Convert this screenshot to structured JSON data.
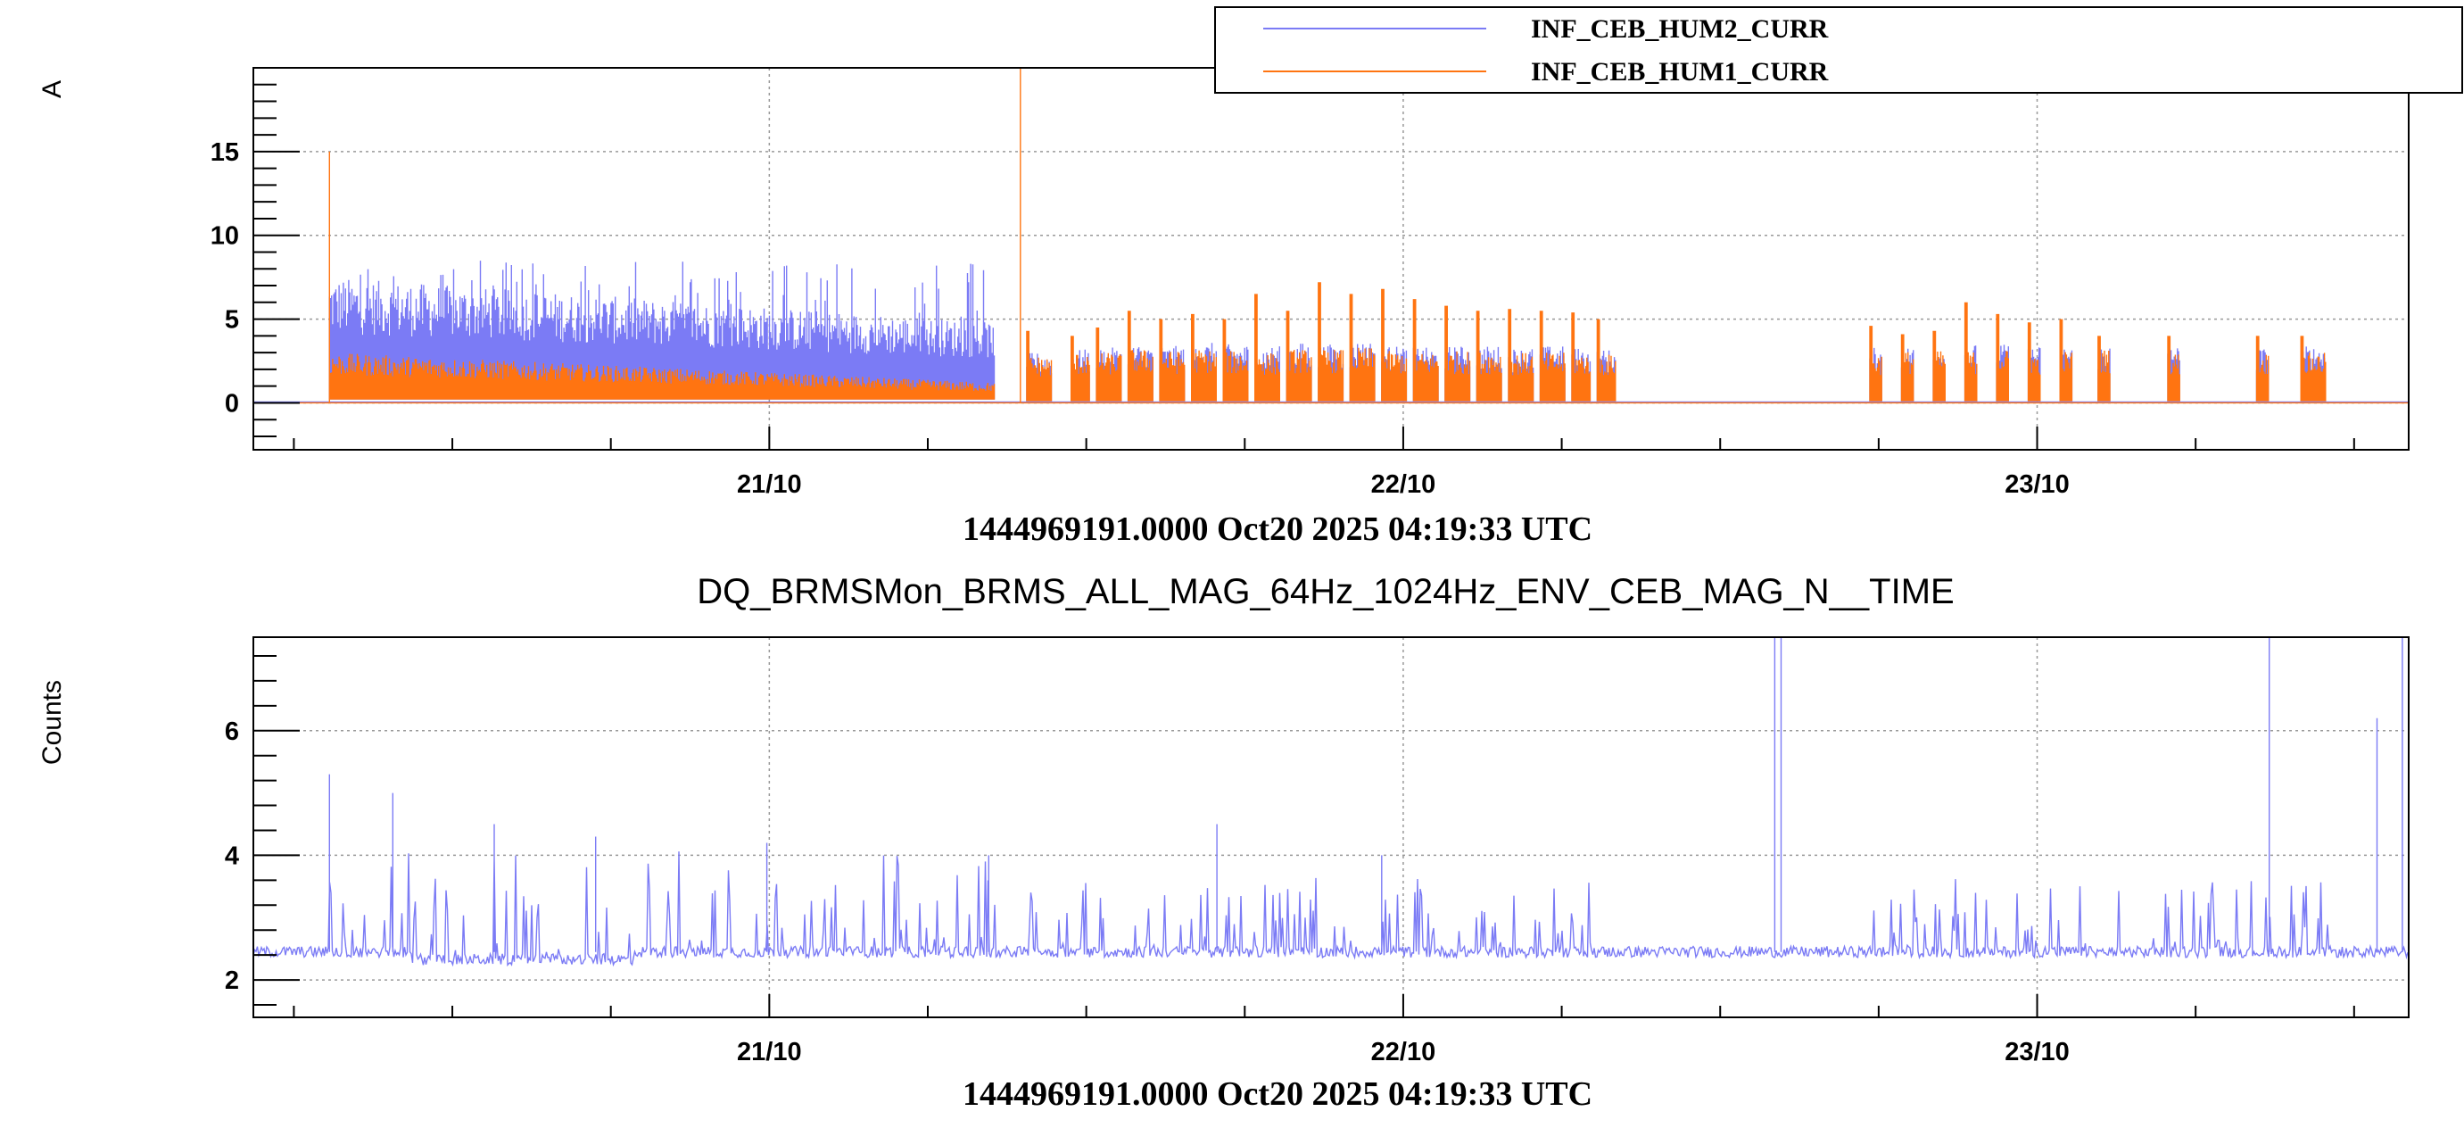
{
  "chart_data": [
    {
      "type": "line",
      "title": "",
      "ylabel": "A",
      "xlabel": "1444969191.0000 Oct20 2025 04:19:33 UTC",
      "x_range_days": [
        0,
        3.4
      ],
      "xticks": [
        {
          "label": "21/10",
          "x": 0.8139
        },
        {
          "label": "22/10",
          "x": 1.8139
        },
        {
          "label": "23/10",
          "x": 2.8139
        }
      ],
      "ylim": [
        -2.8,
        20
      ],
      "yticks": [
        0,
        5,
        10,
        15
      ],
      "grid": true,
      "legend_position": "top-right",
      "series": [
        {
          "name": "INF_CEB_HUM2_CURR",
          "color": "#7b7bf5",
          "segments": [
            {
              "start": 0.12,
              "end": 1.17,
              "base": 0.2,
              "level_start": 7.5,
              "level_end": 4.8,
              "spike_max": 8.5
            },
            {
              "start": 1.22,
              "end": 1.26,
              "base": 0.1,
              "level": 3.0
            },
            {
              "start": 1.29,
              "end": 1.32,
              "base": 0.1,
              "level": 3.2
            },
            {
              "start": 1.33,
              "end": 1.37,
              "base": 0.1,
              "level": 3.3
            },
            {
              "start": 1.38,
              "end": 1.42,
              "base": 0.1,
              "level": 3.5
            },
            {
              "start": 1.43,
              "end": 1.47,
              "base": 0.1,
              "level": 3.4
            },
            {
              "start": 1.48,
              "end": 1.52,
              "base": 0.1,
              "level": 3.6
            },
            {
              "start": 1.53,
              "end": 1.57,
              "base": 0.1,
              "level": 3.5
            },
            {
              "start": 1.58,
              "end": 1.62,
              "base": 0.1,
              "level": 3.4
            },
            {
              "start": 1.63,
              "end": 1.67,
              "base": 0.1,
              "level": 3.6
            },
            {
              "start": 1.68,
              "end": 1.72,
              "base": 0.1,
              "level": 3.5
            },
            {
              "start": 1.73,
              "end": 1.77,
              "base": 0.1,
              "level": 3.7
            },
            {
              "start": 1.78,
              "end": 1.82,
              "base": 0.1,
              "level": 3.4
            },
            {
              "start": 1.83,
              "end": 1.87,
              "base": 0.1,
              "level": 3.3
            },
            {
              "start": 1.88,
              "end": 1.92,
              "base": 0.1,
              "level": 3.4
            },
            {
              "start": 1.93,
              "end": 1.97,
              "base": 0.1,
              "level": 3.4
            },
            {
              "start": 1.98,
              "end": 2.02,
              "base": 0.1,
              "level": 3.3
            },
            {
              "start": 2.03,
              "end": 2.07,
              "base": 0.1,
              "level": 3.4
            },
            {
              "start": 2.08,
              "end": 2.11,
              "base": 0.1,
              "level": 3.3
            },
            {
              "start": 2.12,
              "end": 2.15,
              "base": 0.1,
              "level": 3.2
            },
            {
              "start": 2.55,
              "end": 2.57,
              "base": 0.1,
              "level": 3.3
            },
            {
              "start": 2.6,
              "end": 2.62,
              "base": 0.1,
              "level": 3.4
            },
            {
              "start": 2.65,
              "end": 2.67,
              "base": 0.1,
              "level": 3.4
            },
            {
              "start": 2.7,
              "end": 2.72,
              "base": 0.1,
              "level": 3.5
            },
            {
              "start": 2.75,
              "end": 2.77,
              "base": 0.1,
              "level": 3.5
            },
            {
              "start": 2.8,
              "end": 2.82,
              "base": 0.1,
              "level": 3.4
            },
            {
              "start": 2.85,
              "end": 2.87,
              "base": 0.1,
              "level": 3.4
            },
            {
              "start": 2.91,
              "end": 2.93,
              "base": 0.1,
              "level": 3.5
            },
            {
              "start": 3.02,
              "end": 3.04,
              "base": 0.1,
              "level": 3.4
            },
            {
              "start": 3.16,
              "end": 3.18,
              "base": 0.1,
              "level": 3.3
            },
            {
              "start": 3.23,
              "end": 3.27,
              "base": 0.1,
              "level": 3.4
            }
          ]
        },
        {
          "name": "INF_CEB_HUM1_CURR",
          "color": "#ff7411",
          "baseline": 0.0,
          "spikes": [
            {
              "x": 0.12,
              "y": 15.0
            },
            {
              "x": 1.21,
              "y": 20.0
            }
          ],
          "segments": [
            {
              "start": 0.12,
              "end": 1.17,
              "base": 0.2,
              "level_start": 3.0,
              "level_end": 1.2
            },
            {
              "start": 1.22,
              "end": 1.26,
              "base": 0.1,
              "level": 2.8,
              "peak": 4.3
            },
            {
              "start": 1.29,
              "end": 1.32,
              "base": 0.1,
              "level": 3.0,
              "peak": 4.0
            },
            {
              "start": 1.33,
              "end": 1.37,
              "base": 0.1,
              "level": 3.0,
              "peak": 4.5
            },
            {
              "start": 1.38,
              "end": 1.42,
              "base": 0.1,
              "level": 3.2,
              "peak": 5.5
            },
            {
              "start": 1.43,
              "end": 1.47,
              "base": 0.1,
              "level": 3.1,
              "peak": 5.0
            },
            {
              "start": 1.48,
              "end": 1.52,
              "base": 0.1,
              "level": 3.2,
              "peak": 5.3
            },
            {
              "start": 1.53,
              "end": 1.57,
              "base": 0.1,
              "level": 3.1,
              "peak": 5.0
            },
            {
              "start": 1.58,
              "end": 1.62,
              "base": 0.1,
              "level": 3.0,
              "peak": 6.5
            },
            {
              "start": 1.63,
              "end": 1.67,
              "base": 0.1,
              "level": 3.2,
              "peak": 5.5
            },
            {
              "start": 1.68,
              "end": 1.72,
              "base": 0.1,
              "level": 3.2,
              "peak": 7.2
            },
            {
              "start": 1.73,
              "end": 1.77,
              "base": 0.1,
              "level": 3.3,
              "peak": 6.5
            },
            {
              "start": 1.78,
              "end": 1.82,
              "base": 0.1,
              "level": 3.1,
              "peak": 6.8
            },
            {
              "start": 1.83,
              "end": 1.87,
              "base": 0.1,
              "level": 3.0,
              "peak": 6.2
            },
            {
              "start": 1.88,
              "end": 1.92,
              "base": 0.1,
              "level": 3.1,
              "peak": 5.8
            },
            {
              "start": 1.93,
              "end": 1.97,
              "base": 0.1,
              "level": 3.1,
              "peak": 5.5
            },
            {
              "start": 1.98,
              "end": 2.02,
              "base": 0.1,
              "level": 3.0,
              "peak": 5.6
            },
            {
              "start": 2.03,
              "end": 2.07,
              "base": 0.1,
              "level": 3.0,
              "peak": 5.5
            },
            {
              "start": 2.08,
              "end": 2.11,
              "base": 0.1,
              "level": 3.0,
              "peak": 5.4
            },
            {
              "start": 2.12,
              "end": 2.15,
              "base": 0.1,
              "level": 2.9,
              "peak": 5.0
            },
            {
              "start": 2.55,
              "end": 2.57,
              "base": 0.1,
              "level": 3.0,
              "peak": 4.6
            },
            {
              "start": 2.6,
              "end": 2.62,
              "base": 0.1,
              "level": 3.1,
              "peak": 4.1
            },
            {
              "start": 2.65,
              "end": 2.67,
              "base": 0.1,
              "level": 3.1,
              "peak": 4.3
            },
            {
              "start": 2.7,
              "end": 2.72,
              "base": 0.1,
              "level": 3.1,
              "peak": 6.0
            },
            {
              "start": 2.75,
              "end": 2.77,
              "base": 0.1,
              "level": 3.2,
              "peak": 5.3
            },
            {
              "start": 2.8,
              "end": 2.82,
              "base": 0.1,
              "level": 3.0,
              "peak": 4.8
            },
            {
              "start": 2.85,
              "end": 2.87,
              "base": 0.1,
              "level": 3.1,
              "peak": 5.0
            },
            {
              "start": 2.91,
              "end": 2.93,
              "base": 0.1,
              "level": 3.2,
              "peak": 4.0
            },
            {
              "start": 3.02,
              "end": 3.04,
              "base": 0.1,
              "level": 3.0,
              "peak": 4.0
            },
            {
              "start": 3.16,
              "end": 3.18,
              "base": 0.1,
              "level": 3.0,
              "peak": 4.0
            },
            {
              "start": 3.23,
              "end": 3.27,
              "base": 0.1,
              "level": 3.0,
              "peak": 4.0
            }
          ]
        }
      ]
    },
    {
      "type": "line",
      "title": "DQ_BRMSMon_BRMS_ALL_MAG_64Hz_1024Hz_ENV_CEB_MAG_N__TIME",
      "ylabel": "Counts",
      "xlabel": "1444969191.0000 Oct20 2025 04:19:33 UTC",
      "x_range_days": [
        0,
        3.4
      ],
      "xticks": [
        {
          "label": "21/10",
          "x": 0.8139
        },
        {
          "label": "22/10",
          "x": 1.8139
        },
        {
          "label": "23/10",
          "x": 2.8139
        }
      ],
      "ylim": [
        1.4,
        7.5
      ],
      "yticks": [
        2,
        4,
        6
      ],
      "grid": true,
      "series": [
        {
          "name": "",
          "color": "#7b7bf5",
          "baseline": 2.45,
          "spikes": [
            {
              "x": 0.0,
              "y": 7.5
            },
            {
              "x": 0.12,
              "y": 5.3
            },
            {
              "x": 0.22,
              "y": 5.0
            },
            {
              "x": 0.38,
              "y": 4.5
            },
            {
              "x": 0.54,
              "y": 4.3
            },
            {
              "x": 0.81,
              "y": 4.2
            },
            {
              "x": 1.16,
              "y": 4.0
            },
            {
              "x": 1.52,
              "y": 4.5
            },
            {
              "x": 1.78,
              "y": 4.0
            },
            {
              "x": 2.4,
              "y": 7.5
            },
            {
              "x": 2.41,
              "y": 7.5
            },
            {
              "x": 3.18,
              "y": 7.5
            },
            {
              "x": 3.35,
              "y": 6.2
            },
            {
              "x": 3.39,
              "y": 7.5
            }
          ]
        }
      ]
    }
  ],
  "legend": {
    "entries": [
      {
        "label": "INF_CEB_HUM2_CURR",
        "color": "#7b7bf5"
      },
      {
        "label": "INF_CEB_HUM1_CURR",
        "color": "#ff7411"
      }
    ]
  }
}
